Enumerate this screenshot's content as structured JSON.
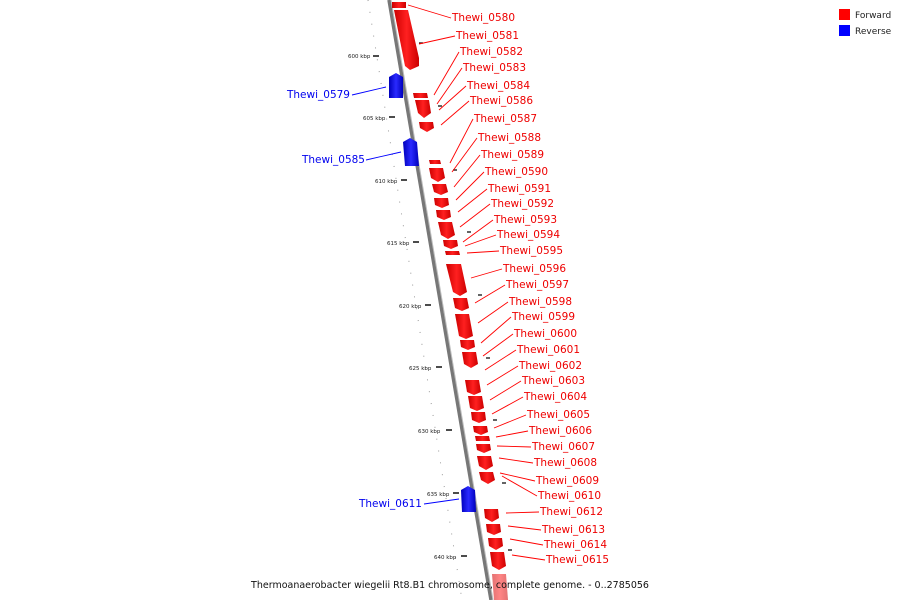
{
  "legend": {
    "forward_label": "Forward",
    "reverse_label": "Reverse",
    "forward_color": "#ff0000",
    "reverse_color": "#0000ff"
  },
  "caption": "Thermoanaerobacter wiegelii Rt8.B1 chromosome, complete genome. - 0..2785056",
  "ticks": [
    "600 kbp",
    "605 kbp",
    "610 kbp",
    "615 kbp",
    "620 kbp",
    "625 kbp",
    "630 kbp",
    "635 kbp",
    "640 kbp"
  ],
  "forward_genes": [
    "Thewi_0580",
    "Thewi_0581",
    "Thewi_0582",
    "Thewi_0583",
    "Thewi_0584",
    "Thewi_0586",
    "Thewi_0587",
    "Thewi_0588",
    "Thewi_0589",
    "Thewi_0590",
    "Thewi_0591",
    "Thewi_0592",
    "Thewi_0593",
    "Thewi_0594",
    "Thewi_0595",
    "Thewi_0596",
    "Thewi_0597",
    "Thewi_0598",
    "Thewi_0599",
    "Thewi_0600",
    "Thewi_0601",
    "Thewi_0602",
    "Thewi_0603",
    "Thewi_0604",
    "Thewi_0605",
    "Thewi_0606",
    "Thewi_0607",
    "Thewi_0608",
    "Thewi_0609",
    "Thewi_0610",
    "Thewi_0612",
    "Thewi_0613",
    "Thewi_0614",
    "Thewi_0615"
  ],
  "reverse_genes": [
    "Thewi_0579",
    "Thewi_0585",
    "Thewi_0611"
  ]
}
